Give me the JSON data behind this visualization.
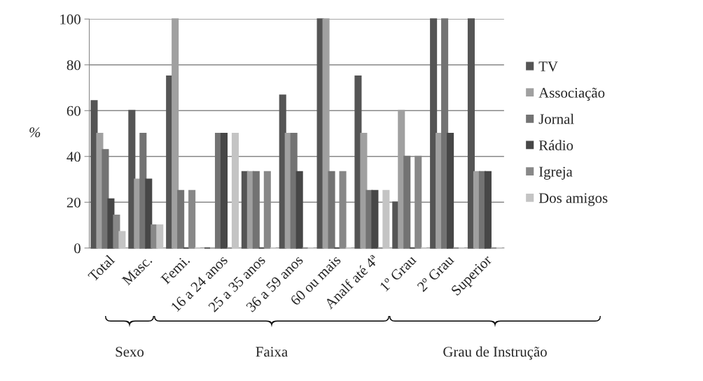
{
  "chart_data": {
    "type": "bar",
    "ylabel": "%",
    "categories": [
      "Total",
      "Masc.",
      "Femi.",
      "16 a 24 anos",
      "25 a 35 anos",
      "36 a 59 anos",
      "60 ou mais",
      "Analf até 4ª",
      "1º Grau",
      "2º Grau",
      "Superior"
    ],
    "series": [
      {
        "name": "TV",
        "color": "#555555",
        "values": [
          64.3,
          60,
          75,
          0,
          33.3,
          66.7,
          100,
          75,
          20,
          100,
          100
        ]
      },
      {
        "name": "Associação",
        "color": "#a0a0a0",
        "values": [
          50,
          30,
          100,
          0,
          33.3,
          50,
          100,
          50,
          60,
          50,
          33.3
        ]
      },
      {
        "name": "Jornal",
        "color": "#737373",
        "values": [
          42.9,
          50,
          25,
          50,
          33.3,
          50,
          33.3,
          25,
          40,
          100,
          33.3
        ]
      },
      {
        "name": "Rádio",
        "color": "#474747",
        "values": [
          21.4,
          30,
          0,
          50,
          0,
          33.3,
          0,
          25,
          0,
          50,
          33.3
        ]
      },
      {
        "name": "Igreja",
        "color": "#888888",
        "values": [
          14.3,
          10,
          25,
          0,
          33.3,
          0,
          33.3,
          0,
          40,
          0,
          0
        ]
      },
      {
        "name": "Dos amigos",
        "color": "#c4c4c4",
        "values": [
          7.1,
          10,
          0,
          50,
          0,
          0,
          0,
          25,
          0,
          0,
          0
        ]
      }
    ],
    "ylim": [
      0,
      100
    ],
    "yticks": [
      0,
      20,
      40,
      60,
      80,
      100
    ],
    "grid": "y",
    "legend": "right",
    "annotations": [
      "Sexo",
      "Faixa",
      "Grau de Instrução"
    ]
  }
}
